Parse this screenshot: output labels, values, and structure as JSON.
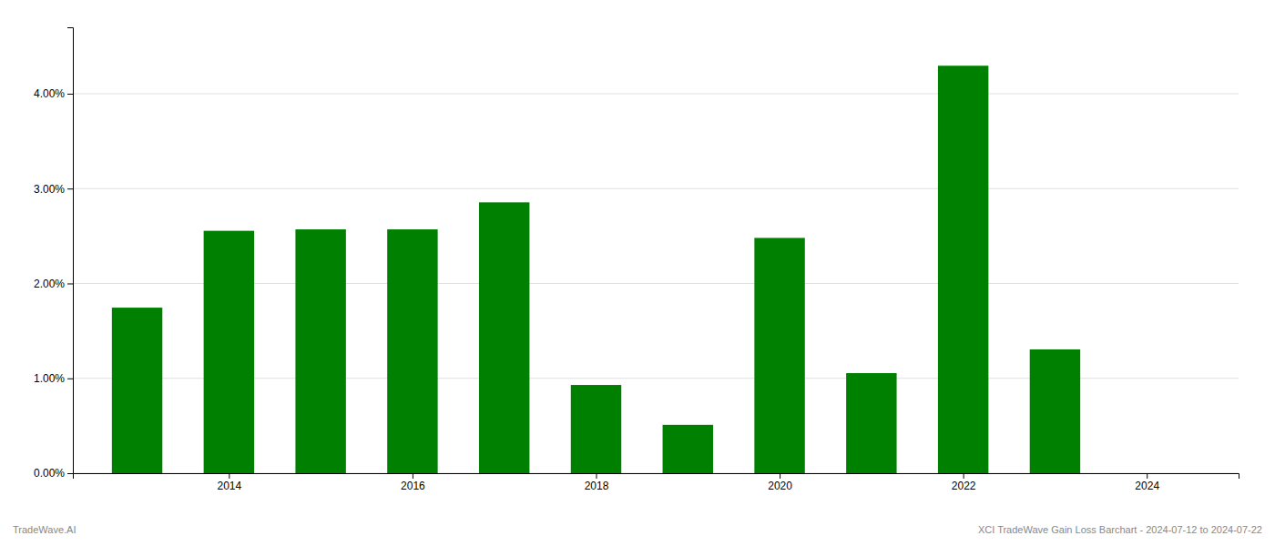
{
  "chart_data": {
    "type": "bar",
    "x": [
      2013,
      2014,
      2015,
      2016,
      2017,
      2018,
      2019,
      2020,
      2021,
      2022,
      2023
    ],
    "values": [
      0.01745,
      0.02555,
      0.0257,
      0.0257,
      0.02855,
      0.0093,
      0.0051,
      0.0248,
      0.01055,
      0.04295,
      0.01305
    ],
    "color": "#008000",
    "xlim": [
      2012.3,
      2025.0
    ],
    "xticks": [
      2014,
      2016,
      2018,
      2020,
      2022,
      2024
    ],
    "ylim": [
      0,
      0.047
    ],
    "yticks": [
      {
        "value": 0,
        "label": "0.00%"
      },
      {
        "value": 0.01,
        "label": "1.00%"
      },
      {
        "value": 0.02,
        "label": "2.00%"
      },
      {
        "value": 0.03,
        "label": "3.00%"
      },
      {
        "value": 0.04,
        "label": "4.00%"
      }
    ],
    "grid": true,
    "annotations": [
      "TradeWave.AI",
      "XCI TradeWave Gain Loss Barchart - 2024-07-12 to 2024-07-22"
    ]
  }
}
